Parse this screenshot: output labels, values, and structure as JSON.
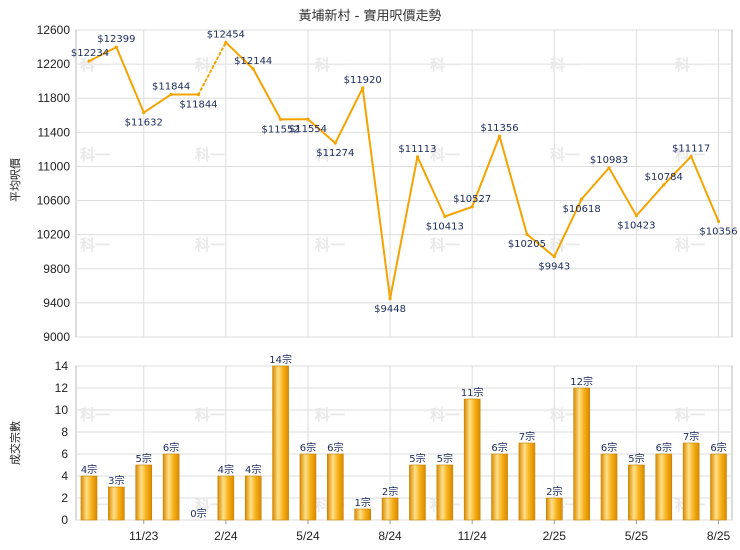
{
  "chart_data": [
    {
      "type": "line",
      "title": "黃埔新村 - 實用呎價走勢",
      "ylabel": "平均呎價",
      "ylim": [
        9000,
        12600
      ],
      "yticks": [
        9000,
        9400,
        9800,
        10200,
        10600,
        11000,
        11400,
        11800,
        12200,
        12600
      ],
      "value_prefix": "$",
      "color": "#f5a300",
      "dotted_segments": [
        4
      ],
      "values": [
        12234,
        12399,
        11632,
        11844,
        11844,
        12454,
        12144,
        11552,
        11554,
        11274,
        11920,
        9448,
        11113,
        10413,
        10527,
        11356,
        10205,
        9943,
        10618,
        10983,
        10423,
        10784,
        11117,
        10356
      ],
      "labels": [
        "$12234",
        "$12399",
        "$11632",
        "$11844",
        "$11844",
        "$12454",
        "$12144",
        "$11552",
        "$11554",
        "$11274",
        "$11920",
        "$9448",
        "$11113",
        "$10413",
        "$10527",
        "$11356",
        "$10205",
        "$9943",
        "$10618",
        "$10983",
        "$10423",
        "$10784",
        "$11117",
        "$10356"
      ]
    },
    {
      "type": "bar",
      "ylabel": "成交宗數",
      "ylim": [
        0,
        14
      ],
      "yticks": [
        0,
        2,
        4,
        6,
        8,
        10,
        12,
        14
      ],
      "value_suffix": "宗",
      "color": "#f5a300",
      "values": [
        4,
        3,
        5,
        6,
        0,
        4,
        4,
        14,
        6,
        6,
        1,
        2,
        5,
        5,
        11,
        6,
        7,
        2,
        12,
        6,
        5,
        6,
        7,
        6
      ],
      "labels": [
        "4宗",
        "3宗",
        "5宗",
        "6宗",
        "0宗",
        "4宗",
        "4宗",
        "14宗",
        "6宗",
        "6宗",
        "1宗",
        "2宗",
        "5宗",
        "5宗",
        "11宗",
        "6宗",
        "7宗",
        "2宗",
        "12宗",
        "6宗",
        "5宗",
        "6宗",
        "7宗",
        "6宗"
      ]
    }
  ],
  "x_axis": {
    "tick_labels": [
      "11/23",
      "2/24",
      "5/24",
      "8/24",
      "11/24",
      "2/25",
      "5/25",
      "8/25"
    ],
    "tick_indices": [
      2,
      5,
      8,
      11,
      14,
      17,
      20,
      23
    ]
  },
  "watermark": "科一"
}
